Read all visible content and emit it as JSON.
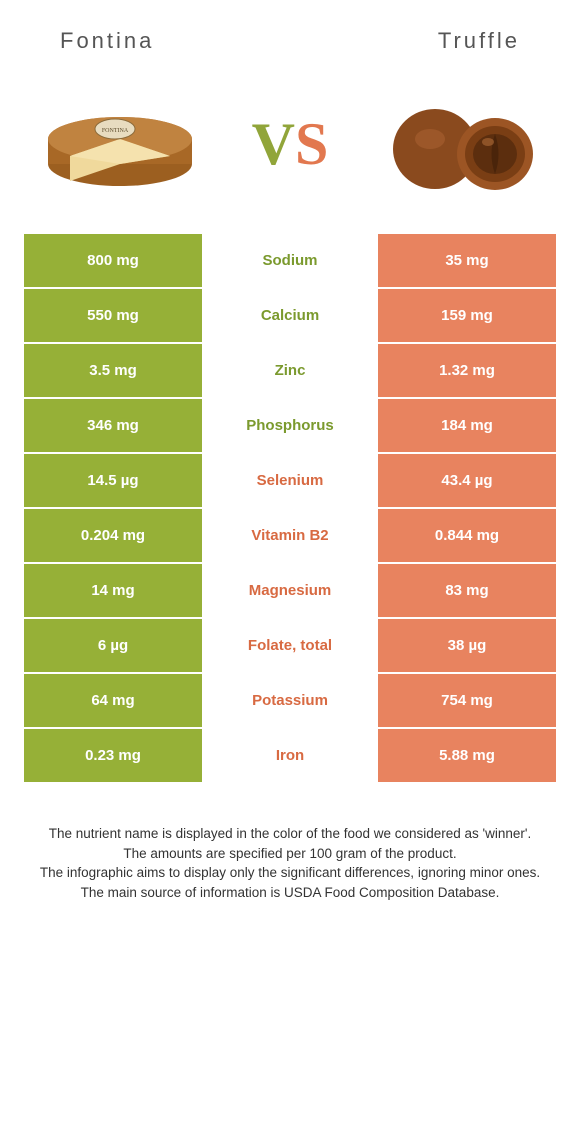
{
  "header": {
    "left_title": "Fontina",
    "right_title": "Truffle"
  },
  "vs": {
    "v": "V",
    "s": "S"
  },
  "colors": {
    "left_bg": "#96b037",
    "left_text": "#ffffff",
    "right_bg": "#e8835f",
    "right_text": "#ffffff",
    "mid_left_text": "#7b9a2e",
    "mid_right_text": "#d86a42"
  },
  "rows": [
    {
      "nutrient": "Sodium",
      "left": "800 mg",
      "right": "35 mg",
      "winner": "left"
    },
    {
      "nutrient": "Calcium",
      "left": "550 mg",
      "right": "159 mg",
      "winner": "left"
    },
    {
      "nutrient": "Zinc",
      "left": "3.5 mg",
      "right": "1.32 mg",
      "winner": "left"
    },
    {
      "nutrient": "Phosphorus",
      "left": "346 mg",
      "right": "184 mg",
      "winner": "left"
    },
    {
      "nutrient": "Selenium",
      "left": "14.5 µg",
      "right": "43.4 µg",
      "winner": "right"
    },
    {
      "nutrient": "Vitamin B2",
      "left": "0.204 mg",
      "right": "0.844 mg",
      "winner": "right"
    },
    {
      "nutrient": "Magnesium",
      "left": "14 mg",
      "right": "83 mg",
      "winner": "right"
    },
    {
      "nutrient": "Folate, total",
      "left": "6 µg",
      "right": "38 µg",
      "winner": "right"
    },
    {
      "nutrient": "Potassium",
      "left": "64 mg",
      "right": "754 mg",
      "winner": "right"
    },
    {
      "nutrient": "Iron",
      "left": "0.23 mg",
      "right": "5.88 mg",
      "winner": "right"
    }
  ],
  "footer": {
    "l1": "The nutrient name is displayed in the color of the food we considered as 'winner'.",
    "l2": "The amounts are specified per 100 gram of the product.",
    "l3": "The infographic aims to display only the significant differences, ignoring minor ones.",
    "l4": "The main source of information is USDA Food Composition Database."
  }
}
